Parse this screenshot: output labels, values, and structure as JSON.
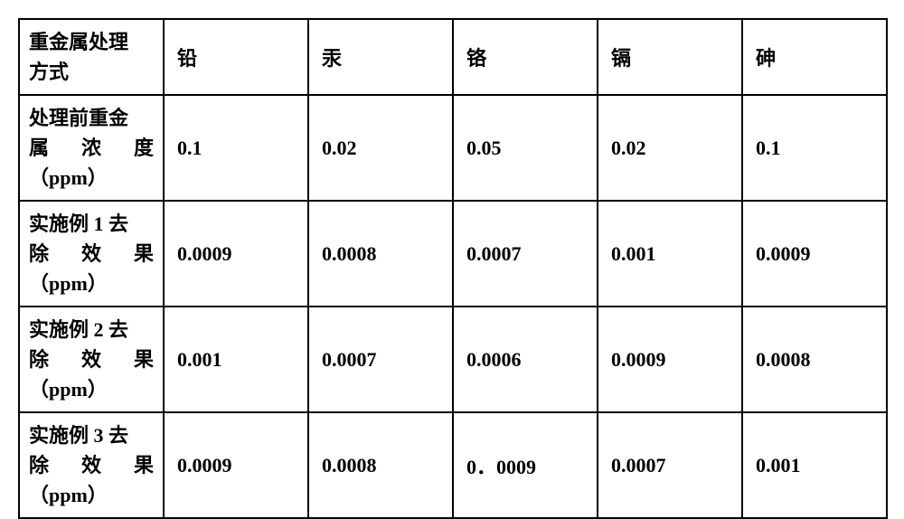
{
  "table": {
    "columns": [
      "重金属处理方式",
      "铅",
      "汞",
      "铬",
      "镉",
      "砷"
    ],
    "row_labels": [
      {
        "line1": "重金属处理",
        "line2": "方式"
      },
      {
        "line1": "处理前重金",
        "line2": "属　浓　度",
        "line3": "（ppm）"
      },
      {
        "line1": "实施例 1 去",
        "line2": "除　效　果",
        "line3": "（ppm）"
      },
      {
        "line1": "实施例 2 去",
        "line2": "除　效　果",
        "line3": "（ppm）"
      },
      {
        "line1": "实施例 3 去",
        "line2": "除　效　果",
        "line3": "（ppm）"
      }
    ],
    "rows": [
      [
        "0.1",
        "0.02",
        "0.05",
        "0.02",
        "0.1"
      ],
      [
        "0.0009",
        "0.0008",
        "0.0007",
        "0.001",
        "0.0009"
      ],
      [
        "0.001",
        "0.0007",
        "0.0006",
        "0.0009",
        "0.0008"
      ],
      [
        "0.0009",
        "0.0008",
        "0．0009",
        "0.0007",
        "0.001"
      ]
    ],
    "border_color": "#000000",
    "background_color": "#ffffff",
    "text_color": "#000000",
    "font_size": 22,
    "font_weight": "bold"
  }
}
